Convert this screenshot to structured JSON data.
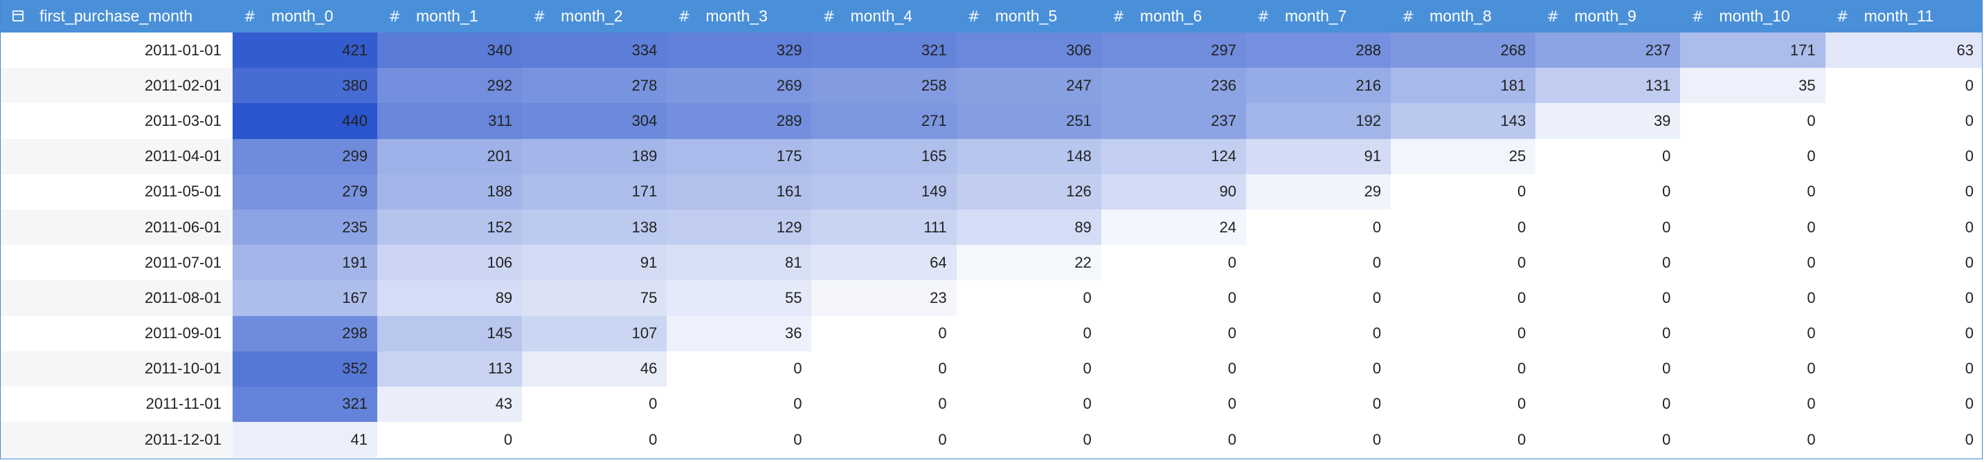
{
  "table": {
    "columns": [
      {
        "label": "first_purchase_month",
        "icon": "calendar-icon"
      },
      {
        "label": "month_0",
        "icon": "hash-icon"
      },
      {
        "label": "month_1",
        "icon": "hash-icon"
      },
      {
        "label": "month_2",
        "icon": "hash-icon"
      },
      {
        "label": "month_3",
        "icon": "hash-icon"
      },
      {
        "label": "month_4",
        "icon": "hash-icon"
      },
      {
        "label": "month_5",
        "icon": "hash-icon"
      },
      {
        "label": "month_6",
        "icon": "hash-icon"
      },
      {
        "label": "month_7",
        "icon": "hash-icon"
      },
      {
        "label": "month_8",
        "icon": "hash-icon"
      },
      {
        "label": "month_9",
        "icon": "hash-icon"
      },
      {
        "label": "month_10",
        "icon": "hash-icon"
      },
      {
        "label": "month_11",
        "icon": "hash-icon"
      }
    ],
    "rows": [
      {
        "date": "2011-01-01",
        "values": [
          421,
          340,
          334,
          329,
          321,
          306,
          297,
          288,
          268,
          237,
          171,
          63
        ]
      },
      {
        "date": "2011-02-01",
        "values": [
          380,
          292,
          278,
          269,
          258,
          247,
          236,
          216,
          181,
          131,
          35,
          0
        ]
      },
      {
        "date": "2011-03-01",
        "values": [
          440,
          311,
          304,
          289,
          271,
          251,
          237,
          192,
          143,
          39,
          0,
          0
        ]
      },
      {
        "date": "2011-04-01",
        "values": [
          299,
          201,
          189,
          175,
          165,
          148,
          124,
          91,
          25,
          0,
          0,
          0
        ]
      },
      {
        "date": "2011-05-01",
        "values": [
          279,
          188,
          171,
          161,
          149,
          126,
          90,
          29,
          0,
          0,
          0,
          0
        ]
      },
      {
        "date": "2011-06-01",
        "values": [
          235,
          152,
          138,
          129,
          111,
          89,
          24,
          0,
          0,
          0,
          0,
          0
        ]
      },
      {
        "date": "2011-07-01",
        "values": [
          191,
          106,
          91,
          81,
          64,
          22,
          0,
          0,
          0,
          0,
          0,
          0
        ]
      },
      {
        "date": "2011-08-01",
        "values": [
          167,
          89,
          75,
          55,
          23,
          0,
          0,
          0,
          0,
          0,
          0,
          0
        ]
      },
      {
        "date": "2011-09-01",
        "values": [
          298,
          145,
          107,
          36,
          0,
          0,
          0,
          0,
          0,
          0,
          0,
          0
        ]
      },
      {
        "date": "2011-10-01",
        "values": [
          352,
          113,
          46,
          0,
          0,
          0,
          0,
          0,
          0,
          0,
          0,
          0
        ]
      },
      {
        "date": "2011-11-01",
        "values": [
          321,
          43,
          0,
          0,
          0,
          0,
          0,
          0,
          0,
          0,
          0,
          0
        ]
      },
      {
        "date": "2011-12-01",
        "values": [
          41,
          0,
          0,
          0,
          0,
          0,
          0,
          0,
          0,
          0,
          0,
          0
        ]
      }
    ]
  },
  "colors": {
    "header_bg": "#4a90d9",
    "heat_max": "#2a55cc",
    "heat_min": "#ffffff"
  }
}
